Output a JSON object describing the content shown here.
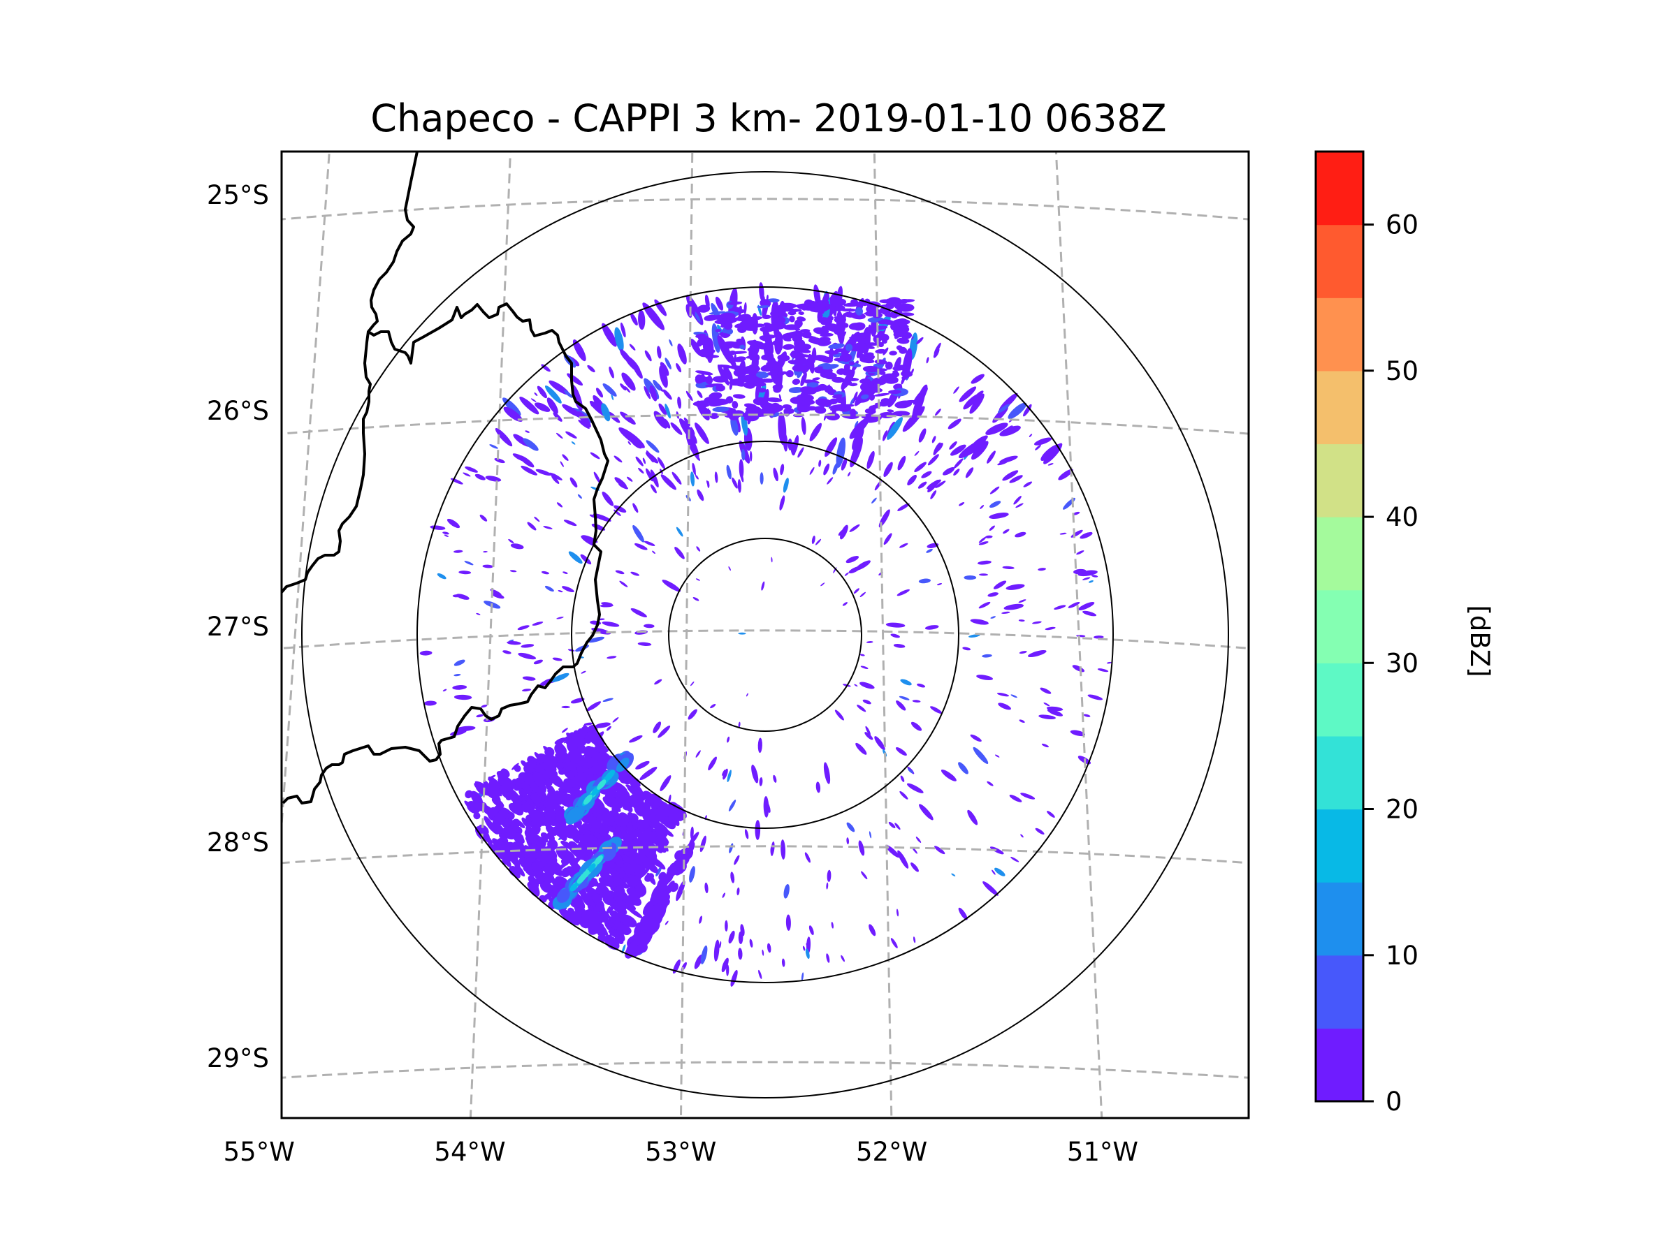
{
  "title": "Chapeco - CAPPI 3 km- 2019-01-10 0638Z",
  "chart_data": {
    "type": "heatmap",
    "title": "Chapeco - CAPPI 3 km- 2019-01-10 0638Z",
    "product": "CAPPI",
    "radar_site": "Chapeco",
    "altitude": "3 km",
    "datetime": "2019-01-10 0638Z",
    "map_extent": {
      "lon": [
        -55.2,
        -50.1
      ],
      "lat": [
        -29.3,
        -24.8
      ]
    },
    "x_ticks": [
      {
        "value": -55,
        "label": "55°W"
      },
      {
        "value": -54,
        "label": "54°W"
      },
      {
        "value": -53,
        "label": "53°W"
      },
      {
        "value": -52,
        "label": "52°W"
      },
      {
        "value": -51,
        "label": "51°W"
      }
    ],
    "y_ticks": [
      {
        "value": -25,
        "label": "25°S"
      },
      {
        "value": -26,
        "label": "26°S"
      },
      {
        "value": -27,
        "label": "27°S"
      },
      {
        "value": -28,
        "label": "28°S"
      },
      {
        "value": -29,
        "label": "29°S"
      }
    ],
    "gridlines": true,
    "range_rings": 4,
    "radar_center": {
      "lon": -52.6,
      "lat": -27.02
    },
    "colorbar": {
      "label": "[dBZ]",
      "placement": "right",
      "min": 0,
      "max": 65,
      "step": 5,
      "ticks": [
        0,
        10,
        20,
        30,
        40,
        50,
        60
      ],
      "tick_labels": [
        "0",
        "10",
        "20",
        "30",
        "40",
        "50",
        "60"
      ],
      "colors": [
        "#6f1cff",
        "#4758fb",
        "#1e8fee",
        "#08b9e6",
        "#33e2d7",
        "#5ef9c5",
        "#84ffb2",
        "#a4fa9c",
        "#d1e187",
        "#f4bf6c",
        "#ff914f",
        "#ff5a2f",
        "#ff1e14"
      ]
    },
    "observed_echoes": [
      {
        "region": "southwest of radar (~28°S, 53.5°W)",
        "max_dbz_range": "15-25",
        "description": "band-shaped echo cluster"
      },
      {
        "region": "north of radar (~25.8°S, 52.6°W)",
        "max_dbz_range": "0-10",
        "description": "scattered weak echoes"
      },
      {
        "region": "remainder of radar coverage",
        "max_dbz_range": "0-10",
        "description": "scattered clutter/weak echoes"
      }
    ]
  }
}
